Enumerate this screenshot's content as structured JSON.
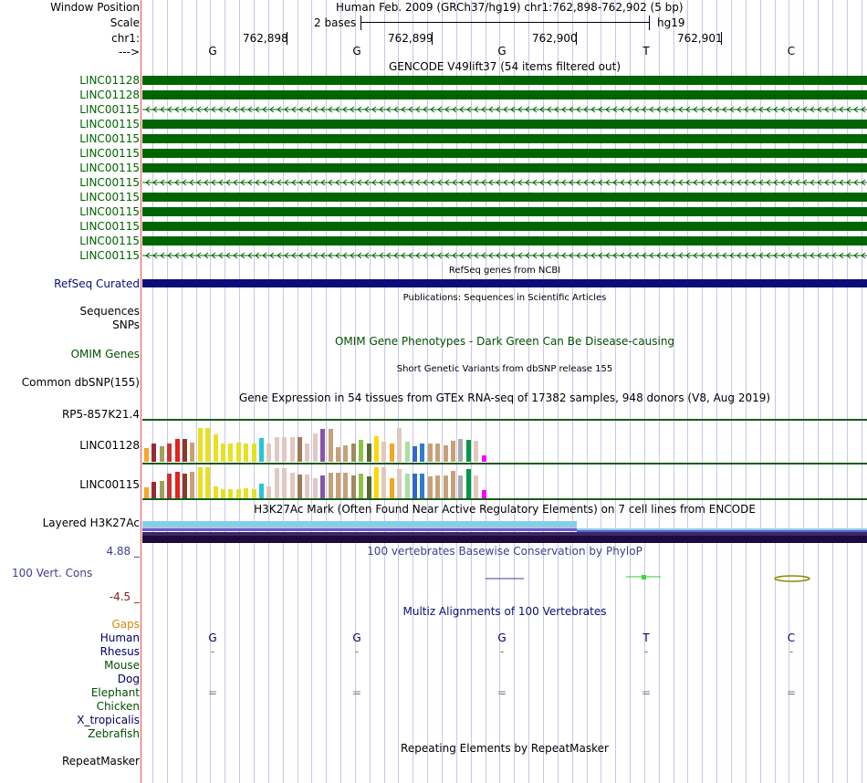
{
  "header": {
    "window_position_label": "Window Position",
    "scale_label": "Scale",
    "chr_label": "chr1:",
    "strand_label": "--->",
    "assembly_position": "Human Feb. 2009 (GRCh37/hg19)   chr1:762,898-762,902 (5 bp)",
    "scale_text": "2 bases",
    "scale_db": "hg19",
    "positions": [
      "762,898",
      "762,899",
      "762,900",
      "762,901"
    ],
    "bases": [
      "G",
      "G",
      "G",
      "T",
      "C"
    ]
  },
  "gencode": {
    "title": "GENCODE V49lift37 (54 items filtered out)",
    "items": [
      {
        "label": "LINC01128",
        "style": "solid"
      },
      {
        "label": "LINC01128",
        "style": "solid"
      },
      {
        "label": "LINC00115",
        "style": "intron"
      },
      {
        "label": "LINC00115",
        "style": "solid"
      },
      {
        "label": "LINC00115",
        "style": "solid"
      },
      {
        "label": "LINC00115",
        "style": "solid"
      },
      {
        "label": "LINC00115",
        "style": "solid"
      },
      {
        "label": "LINC00115",
        "style": "intron"
      },
      {
        "label": "LINC00115",
        "style": "solid"
      },
      {
        "label": "LINC00115",
        "style": "solid"
      },
      {
        "label": "LINC00115",
        "style": "solid"
      },
      {
        "label": "LINC00115",
        "style": "solid"
      },
      {
        "label": "LINC00115",
        "style": "intron"
      }
    ]
  },
  "refseq": {
    "title": "RefSeq genes from NCBI",
    "label": "RefSeq Curated"
  },
  "publications": {
    "title": "Publications: Sequences in Scientific Articles",
    "label": "Sequences"
  },
  "snps_label": "SNPs",
  "omim": {
    "title": "OMIM Gene Phenotypes - Dark Green Can Be Disease-causing",
    "label": "OMIM Genes"
  },
  "dbsnp": {
    "title": "Short Genetic Variants from dbSNP release 155",
    "label": "Common dbSNP(155)"
  },
  "gtex": {
    "title": "Gene Expression in 54 tissues from GTEx RNA-seq of 17382 samples, 948 donors (V8, Aug 2019)",
    "labels": [
      "RP5-857K21.4",
      "LINC01128",
      "LINC00115"
    ],
    "colors": [
      "#f5a623",
      "#9a2a3a",
      "#a0a060",
      "#cc3333",
      "#e8201a",
      "#8b3a2a",
      "#c8a078",
      "#e8e020",
      "#e8e020",
      "#e8e020",
      "#e8e020",
      "#e8e020",
      "#e8e020",
      "#e8e020",
      "#e8e020",
      "#26c6da",
      "#e0c8c0",
      "#e0c8c0",
      "#e0c8c0",
      "#e0c8c0",
      "#9c7a5a",
      "#e0c8c0",
      "#e0c8c0",
      "#8855aa",
      "#c8a078",
      "#c8a078",
      "#c8a078",
      "#a08a60",
      "#8bc34a",
      "#556b2f",
      "#ffd700",
      "#e0c8c0",
      "#f5a623",
      "#e0c8c0",
      "#a8e0a0",
      "#3366cc",
      "#2e7dd2",
      "#c8a078",
      "#c8a078",
      "#c8a078",
      "#c8a078",
      "#aaaaaa",
      "#009944",
      "#e0c8c0",
      "#ff00ff"
    ],
    "values_row1": [
      0.38,
      0.5,
      0.43,
      0.5,
      0.63,
      0.63,
      0.53,
      0.92,
      0.92,
      0.76,
      0.5,
      0.5,
      0.53,
      0.5,
      0.5,
      0.65,
      0.5,
      0.68,
      0.68,
      0.68,
      0.68,
      0.5,
      0.78,
      0.9,
      0.9,
      0.41,
      0.45,
      0.49,
      0.61,
      0.49,
      0.7,
      0.55,
      0.51,
      0.92,
      0.56,
      0.43,
      0.51,
      0.51,
      0.51,
      0.46,
      0.58,
      0.62,
      0.61,
      0.58,
      0.18
    ],
    "values_row2": [
      0.3,
      0.45,
      0.48,
      0.68,
      0.72,
      0.68,
      0.73,
      0.84,
      0.84,
      0.32,
      0.26,
      0.26,
      0.26,
      0.28,
      0.26,
      0.4,
      0.32,
      0.82,
      0.82,
      0.7,
      0.65,
      0.65,
      0.55,
      0.62,
      0.7,
      0.7,
      0.7,
      0.63,
      0.68,
      0.6,
      0.85,
      0.85,
      0.55,
      0.81,
      0.68,
      0.68,
      0.68,
      0.59,
      0.63,
      0.63,
      0.76,
      0.63,
      0.79,
      0.63,
      0.22
    ]
  },
  "h3k27ac": {
    "title": "H3K27Ac Mark (Often Found Near Active Regulatory Elements) on 7 cell lines from ENCODE",
    "label": "Layered H3K27Ac"
  },
  "conservation": {
    "title": "100 vertebrates Basewise Conservation by PhyloP",
    "label": "100 Vert. Cons",
    "max_label": "4.88 _",
    "min_label": "-4.5 _"
  },
  "multiz": {
    "title": "Multiz Alignments of 100 Vertebrates",
    "gaps_label": "Gaps",
    "species": [
      {
        "name": "Human",
        "bases": [
          "G",
          "G",
          "G",
          "T",
          "C"
        ],
        "color": "#000066"
      },
      {
        "name": "Rhesus",
        "bases": [
          "-",
          "-",
          "-",
          "-",
          "-"
        ],
        "color": "#000066"
      },
      {
        "name": "Mouse",
        "bases": [
          "",
          "",
          "",
          "",
          ""
        ],
        "color": "#005000"
      },
      {
        "name": "Dog",
        "bases": [
          "",
          "",
          "",
          "",
          ""
        ],
        "color": "#000066"
      },
      {
        "name": "Elephant",
        "bases": [
          "=",
          "=",
          "=",
          "=",
          "="
        ],
        "color": "#005000"
      },
      {
        "name": "Chicken",
        "bases": [
          "",
          "",
          "",
          "",
          ""
        ],
        "color": "#005000"
      },
      {
        "name": "X_tropicalis",
        "bases": [
          "",
          "",
          "",
          "",
          ""
        ],
        "color": "#000066"
      },
      {
        "name": "Zebrafish",
        "bases": [
          "",
          "",
          "",
          "",
          ""
        ],
        "color": "#005000"
      }
    ]
  },
  "repeatmasker": {
    "title": "Repeating Elements by RepeatMasker",
    "label": "RepeatMasker"
  },
  "colors": {
    "gencode": "#006400",
    "refseq": "#0c0c78",
    "omim": "#005000",
    "conservation": "#3f3f8f",
    "cons_min": "#8b1a1a",
    "gaps": "#d2870b",
    "grid": "#c8c8e8",
    "divider": "#e85050"
  }
}
